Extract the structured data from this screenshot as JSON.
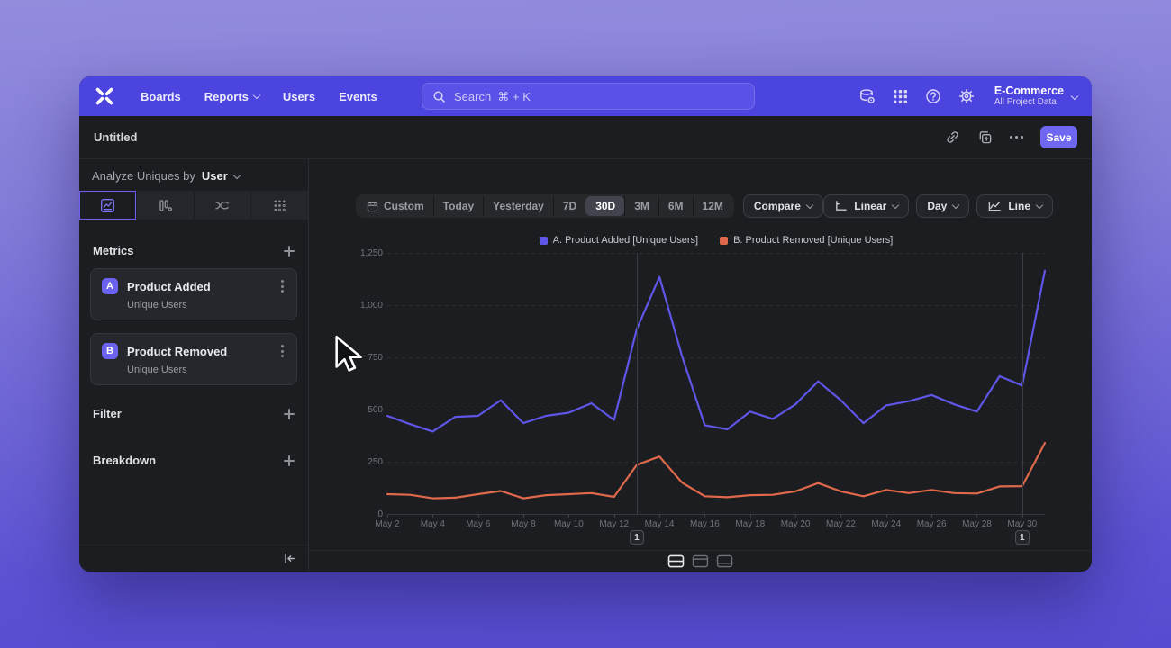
{
  "navbar": {
    "items": [
      {
        "label": "Boards",
        "chevron": false
      },
      {
        "label": "Reports",
        "chevron": true
      },
      {
        "label": "Users",
        "chevron": false
      },
      {
        "label": "Events",
        "chevron": false
      }
    ],
    "search": {
      "placeholder": "Search  ⌘ + K"
    },
    "project": {
      "name": "E-Commerce",
      "scope": "All Project Data"
    }
  },
  "titlebar": {
    "title": "Untitled",
    "save_label": "Save"
  },
  "sidebar": {
    "analyze_label": "Analyze Uniques by",
    "analyze_value": "User",
    "tabs": [
      "insights",
      "funnels",
      "flows",
      "retention"
    ],
    "metrics": {
      "header": "Metrics",
      "items": [
        {
          "badge": "A",
          "name": "Product Added",
          "subtitle": "Unique Users"
        },
        {
          "badge": "B",
          "name": "Product Removed",
          "subtitle": "Unique Users"
        }
      ]
    },
    "filter_label": "Filter",
    "breakdown_label": "Breakdown"
  },
  "controls": {
    "date_ranges": [
      "Custom",
      "Today",
      "Yesterday",
      "7D",
      "30D",
      "3M",
      "6M",
      "12M"
    ],
    "selected_range": "30D",
    "compare_label": "Compare",
    "scale_label": "Linear",
    "interval_label": "Day",
    "chart_type_label": "Line"
  },
  "icons": {
    "navbar_right": [
      "data-settings-icon",
      "apps-grid-icon",
      "help-icon",
      "settings-gear-icon"
    ],
    "titlebar": [
      "link-icon",
      "duplicate-icon",
      "more-ellipsis-icon"
    ],
    "sidebar_tabs": [
      "insights-tab-icon",
      "funnels-tab-icon",
      "flows-tab-icon",
      "retention-tab-icon"
    ],
    "chart_footer": [
      "layout-split-icon",
      "layout-top-icon",
      "layout-bottom-icon"
    ]
  },
  "accent_colors": {
    "navbar": "#4c44de",
    "accent": "#6b62f0",
    "series_a": "#5f56e8",
    "series_b": "#e0694b"
  },
  "chart_data": {
    "type": "line",
    "x": [
      "May 2",
      "May 3",
      "May 4",
      "May 5",
      "May 6",
      "May 7",
      "May 8",
      "May 9",
      "May 10",
      "May 11",
      "May 12",
      "May 13",
      "May 14",
      "May 15",
      "May 16",
      "May 17",
      "May 18",
      "May 19",
      "May 20",
      "May 21",
      "May 22",
      "May 23",
      "May 24",
      "May 25",
      "May 26",
      "May 27",
      "May 28",
      "May 29",
      "May 30",
      "May 31"
    ],
    "series": [
      {
        "name": "A. Product Added [Unique Users]",
        "color": "#5f56e8",
        "values": [
          470,
          430,
          395,
          465,
          470,
          545,
          435,
          470,
          485,
          530,
          450,
          885,
          1135,
          755,
          425,
          405,
          490,
          455,
          525,
          635,
          545,
          435,
          520,
          540,
          570,
          525,
          490,
          660,
          615,
          1165
        ]
      },
      {
        "name": "B. Product Removed [Unique Users]",
        "color": "#e0694b",
        "values": [
          95,
          92,
          75,
          78,
          95,
          110,
          75,
          90,
          95,
          100,
          82,
          235,
          275,
          150,
          85,
          80,
          90,
          92,
          108,
          148,
          108,
          85,
          115,
          100,
          115,
          100,
          98,
          132,
          133,
          340
        ]
      }
    ],
    "ylim": [
      0,
      1250
    ],
    "yticks": [
      0,
      250,
      500,
      750,
      1000,
      1250
    ],
    "ytick_labels": [
      "0",
      "250",
      "500",
      "750",
      "1,000",
      "1,250"
    ],
    "xticks_every": 2,
    "annotations": [
      {
        "day_index": 11,
        "badge": "1"
      },
      {
        "day_index": 28,
        "badge": "1"
      }
    ],
    "grid": "horizontal-dashed",
    "legend_position": "top-center"
  }
}
